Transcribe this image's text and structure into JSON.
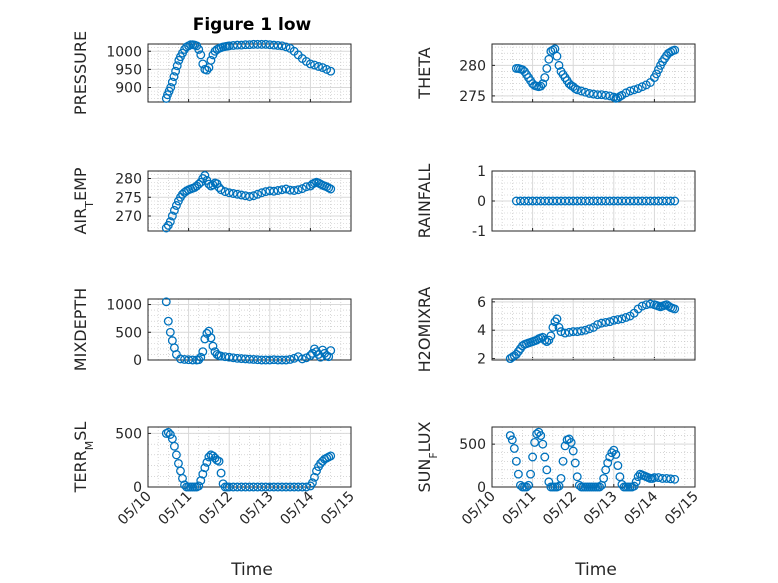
{
  "figure": {
    "title": "Figure 1 low",
    "xlabel": "Time",
    "xticks": [
      "05/10",
      "05/11",
      "05/12",
      "05/13",
      "05/14",
      "05/15"
    ],
    "marker_color": "#0072BD"
  },
  "chart_data": [
    {
      "type": "scatter",
      "ylabel": "PRESSURE",
      "yticks": [
        "900",
        "950",
        "1000"
      ],
      "ylim": [
        860,
        1020
      ],
      "xlim": [
        0,
        5
      ],
      "grid": true,
      "series": [
        {
          "x": [
            0.45,
            0.48,
            0.52,
            0.56,
            0.6,
            0.64,
            0.68,
            0.72,
            0.76,
            0.8,
            0.85,
            0.9,
            0.95,
            1.0,
            1.05,
            1.1,
            1.15,
            1.2,
            1.25,
            1.3,
            1.35,
            1.4,
            1.45,
            1.5,
            1.55,
            1.6,
            1.65,
            1.7,
            1.75,
            1.8,
            1.85,
            1.9,
            1.95,
            2.0,
            2.1,
            2.2,
            2.3,
            2.4,
            2.5,
            2.6,
            2.7,
            2.8,
            2.9,
            3.0,
            3.1,
            3.2,
            3.3,
            3.4,
            3.5,
            3.6,
            3.7,
            3.8,
            3.9,
            4.0,
            4.1,
            4.2,
            4.3,
            4.4,
            4.5
          ],
          "y": [
            870,
            880,
            890,
            900,
            915,
            930,
            945,
            960,
            975,
            985,
            995,
            1005,
            1012,
            1015,
            1018,
            1018,
            1017,
            1015,
            1005,
            990,
            965,
            950,
            948,
            955,
            975,
            990,
            1000,
            1005,
            1008,
            1010,
            1012,
            1013,
            1014,
            1015,
            1016,
            1017,
            1017,
            1018,
            1018,
            1019,
            1019,
            1019,
            1019,
            1018,
            1017,
            1016,
            1015,
            1012,
            1008,
            1000,
            990,
            980,
            972,
            965,
            962,
            958,
            955,
            950,
            945
          ]
        }
      ]
    },
    {
      "type": "scatter",
      "ylabel": "THETA",
      "yticks": [
        "275",
        "280"
      ],
      "ylim": [
        274,
        283.5
      ],
      "xlim": [
        0,
        5
      ],
      "grid": true,
      "series": [
        {
          "x": [
            0.6,
            0.65,
            0.7,
            0.75,
            0.8,
            0.85,
            0.9,
            0.95,
            1.0,
            1.05,
            1.1,
            1.15,
            1.2,
            1.25,
            1.3,
            1.35,
            1.4,
            1.45,
            1.5,
            1.55,
            1.6,
            1.65,
            1.7,
            1.75,
            1.8,
            1.85,
            1.9,
            1.95,
            2.0,
            2.05,
            2.1,
            2.2,
            2.3,
            2.4,
            2.5,
            2.6,
            2.7,
            2.8,
            2.9,
            3.0,
            3.05,
            3.1,
            3.15,
            3.2,
            3.3,
            3.4,
            3.5,
            3.6,
            3.7,
            3.8,
            3.9,
            4.0,
            4.05,
            4.1,
            4.15,
            4.2,
            4.25,
            4.3,
            4.35,
            4.4,
            4.45,
            4.5
          ],
          "y": [
            279.5,
            279.5,
            279.4,
            279.3,
            279,
            278.5,
            278,
            277.5,
            277,
            276.7,
            276.6,
            276.5,
            276.6,
            277,
            278,
            279.5,
            281,
            282.3,
            282.5,
            282.7,
            281.5,
            280,
            279,
            278.5,
            278,
            277.5,
            277,
            276.7,
            276.5,
            276.2,
            276,
            275.8,
            275.6,
            275.4,
            275.3,
            275.2,
            275.2,
            275.1,
            275,
            274.8,
            274.6,
            274.7,
            274.9,
            275.1,
            275.5,
            275.8,
            276,
            276.2,
            276.5,
            276.8,
            277.2,
            278,
            278.6,
            279.3,
            280,
            280.6,
            281.1,
            281.6,
            282,
            282.2,
            282.4,
            282.5
          ]
        }
      ]
    },
    {
      "type": "scatter",
      "ylabel": "AIR_TEMP",
      "yticks": [
        "270",
        "275",
        "280"
      ],
      "ylim": [
        266,
        282
      ],
      "xlim": [
        0,
        5
      ],
      "grid": true,
      "series": [
        {
          "x": [
            0.45,
            0.5,
            0.55,
            0.6,
            0.65,
            0.7,
            0.75,
            0.8,
            0.85,
            0.9,
            0.95,
            1.0,
            1.05,
            1.1,
            1.15,
            1.2,
            1.25,
            1.3,
            1.35,
            1.4,
            1.45,
            1.5,
            1.55,
            1.6,
            1.65,
            1.7,
            1.75,
            1.8,
            1.9,
            2.0,
            2.1,
            2.2,
            2.3,
            2.4,
            2.5,
            2.6,
            2.7,
            2.8,
            2.9,
            3.0,
            3.1,
            3.2,
            3.3,
            3.4,
            3.5,
            3.6,
            3.7,
            3.8,
            3.9,
            4.0,
            4.05,
            4.1,
            4.15,
            4.2,
            4.25,
            4.3,
            4.35,
            4.4,
            4.45,
            4.5
          ],
          "y": [
            266.8,
            267.5,
            268.5,
            270,
            271.5,
            272.8,
            274,
            275,
            275.8,
            276.3,
            276.7,
            277,
            277.2,
            277.4,
            277.6,
            278,
            278.5,
            279,
            280,
            280.8,
            279.5,
            278.5,
            278,
            278.3,
            278.8,
            278.6,
            277.6,
            277,
            276.5,
            276.2,
            276,
            275.8,
            275.6,
            275.4,
            275.2,
            275.4,
            275.8,
            276.2,
            276.5,
            276.7,
            276.6,
            276.8,
            277,
            277.2,
            276.9,
            276.8,
            277,
            277.3,
            277.8,
            278,
            278.5,
            278.8,
            279,
            278.8,
            278.5,
            278.2,
            278,
            277.8,
            277.5,
            277.2
          ]
        }
      ]
    },
    {
      "type": "scatter",
      "ylabel": "RAINFALL",
      "yticks": [
        "-1",
        "0",
        "1"
      ],
      "ylim": [
        -1,
        1
      ],
      "xlim": [
        0,
        5
      ],
      "grid": true,
      "series": [
        {
          "x": [
            0.6,
            0.7,
            0.8,
            0.9,
            1.0,
            1.1,
            1.2,
            1.3,
            1.4,
            1.5,
            1.6,
            1.7,
            1.8,
            1.9,
            2.0,
            2.1,
            2.2,
            2.3,
            2.4,
            2.5,
            2.6,
            2.7,
            2.8,
            2.9,
            3.0,
            3.1,
            3.2,
            3.3,
            3.4,
            3.5,
            3.6,
            3.7,
            3.8,
            3.9,
            4.0,
            4.1,
            4.2,
            4.3,
            4.4,
            4.5
          ],
          "y": [
            0,
            0,
            0,
            0,
            0,
            0,
            0,
            0,
            0,
            0,
            0,
            0,
            0,
            0,
            0,
            0,
            0,
            0,
            0,
            0,
            0,
            0,
            0,
            0,
            0,
            0,
            0,
            0,
            0,
            0,
            0,
            0,
            0,
            0,
            0,
            0,
            0,
            0,
            0,
            0
          ]
        }
      ]
    },
    {
      "type": "scatter",
      "ylabel": "MIXDEPTH",
      "yticks": [
        "0",
        "500",
        "1000"
      ],
      "ylim": [
        0,
        1100
      ],
      "xlim": [
        0,
        5
      ],
      "grid": true,
      "series": [
        {
          "x": [
            0.45,
            0.5,
            0.55,
            0.6,
            0.65,
            0.7,
            0.8,
            0.9,
            1.0,
            1.1,
            1.2,
            1.25,
            1.3,
            1.35,
            1.4,
            1.45,
            1.5,
            1.55,
            1.6,
            1.65,
            1.7,
            1.75,
            1.8,
            1.9,
            2.0,
            2.1,
            2.2,
            2.3,
            2.4,
            2.5,
            2.6,
            2.7,
            2.8,
            2.9,
            3.0,
            3.1,
            3.2,
            3.3,
            3.4,
            3.5,
            3.6,
            3.7,
            3.8,
            3.9,
            4.0,
            4.05,
            4.1,
            4.15,
            4.2,
            4.25,
            4.3,
            4.35,
            4.4,
            4.45,
            4.5
          ],
          "y": [
            1050,
            700,
            500,
            350,
            220,
            100,
            20,
            10,
            5,
            0,
            0,
            5,
            50,
            150,
            380,
            480,
            520,
            400,
            250,
            150,
            100,
            80,
            70,
            60,
            50,
            40,
            30,
            25,
            20,
            15,
            10,
            5,
            0,
            0,
            0,
            5,
            0,
            0,
            0,
            10,
            30,
            60,
            20,
            40,
            80,
            120,
            200,
            150,
            100,
            50,
            180,
            120,
            80,
            60,
            170
          ]
        }
      ]
    },
    {
      "type": "scatter",
      "ylabel": "H2OMIXRA",
      "yticks": [
        "2",
        "4",
        "6"
      ],
      "ylim": [
        1.9,
        6.2
      ],
      "xlim": [
        0,
        5
      ],
      "grid": true,
      "series": [
        {
          "x": [
            0.45,
            0.5,
            0.55,
            0.6,
            0.65,
            0.7,
            0.75,
            0.8,
            0.85,
            0.9,
            0.95,
            1.0,
            1.05,
            1.1,
            1.15,
            1.2,
            1.25,
            1.3,
            1.35,
            1.4,
            1.45,
            1.5,
            1.55,
            1.6,
            1.65,
            1.7,
            1.8,
            1.9,
            2.0,
            2.1,
            2.2,
            2.3,
            2.4,
            2.5,
            2.6,
            2.7,
            2.8,
            2.9,
            3.0,
            3.1,
            3.2,
            3.3,
            3.4,
            3.5,
            3.6,
            3.7,
            3.8,
            3.9,
            4.0,
            4.05,
            4.1,
            4.15,
            4.2,
            4.25,
            4.3,
            4.35,
            4.4,
            4.45,
            4.5
          ],
          "y": [
            2.0,
            2.1,
            2.2,
            2.3,
            2.5,
            2.7,
            2.9,
            3.0,
            3.05,
            3.1,
            3.15,
            3.2,
            3.25,
            3.3,
            3.4,
            3.45,
            3.5,
            3.3,
            3.2,
            3.3,
            3.6,
            4.2,
            4.6,
            4.8,
            4.2,
            3.9,
            3.8,
            3.85,
            3.9,
            3.9,
            3.95,
            4.0,
            4.1,
            4.2,
            4.4,
            4.5,
            4.55,
            4.6,
            4.7,
            4.75,
            4.8,
            4.9,
            5.0,
            5.2,
            5.5,
            5.7,
            5.8,
            5.85,
            5.8,
            5.75,
            5.7,
            5.65,
            5.7,
            5.75,
            5.8,
            5.7,
            5.6,
            5.55,
            5.5
          ]
        }
      ]
    },
    {
      "type": "scatter",
      "ylabel": "TERR_MSL",
      "yticks": [
        "0",
        "500"
      ],
      "ylim": [
        0,
        560
      ],
      "xlim": [
        0,
        5
      ],
      "grid": true,
      "series": [
        {
          "x": [
            0.45,
            0.5,
            0.55,
            0.6,
            0.65,
            0.7,
            0.75,
            0.8,
            0.85,
            0.9,
            0.95,
            1.0,
            1.05,
            1.1,
            1.15,
            1.2,
            1.25,
            1.3,
            1.35,
            1.4,
            1.45,
            1.5,
            1.55,
            1.6,
            1.65,
            1.7,
            1.75,
            1.8,
            1.85,
            1.9,
            1.95,
            2.0,
            2.1,
            2.2,
            2.3,
            2.4,
            2.5,
            2.6,
            2.7,
            2.8,
            2.9,
            3.0,
            3.1,
            3.2,
            3.3,
            3.4,
            3.5,
            3.6,
            3.7,
            3.8,
            3.9,
            4.0,
            4.05,
            4.1,
            4.15,
            4.2,
            4.25,
            4.3,
            4.35,
            4.4,
            4.45,
            4.5
          ],
          "y": [
            500,
            510,
            490,
            450,
            380,
            300,
            220,
            150,
            80,
            20,
            0,
            0,
            0,
            0,
            0,
            0,
            10,
            60,
            120,
            180,
            230,
            280,
            300,
            290,
            270,
            250,
            240,
            130,
            30,
            0,
            0,
            0,
            0,
            0,
            0,
            0,
            0,
            0,
            0,
            0,
            0,
            0,
            0,
            0,
            0,
            0,
            0,
            0,
            0,
            0,
            0,
            10,
            40,
            90,
            150,
            190,
            220,
            240,
            260,
            270,
            280,
            290
          ]
        }
      ]
    },
    {
      "type": "scatter",
      "ylabel": "SUN_FLUX",
      "yticks": [
        "0",
        "500"
      ],
      "ylim": [
        0,
        700
      ],
      "xlim": [
        0,
        5
      ],
      "grid": true,
      "series": [
        {
          "x": [
            0.45,
            0.5,
            0.55,
            0.6,
            0.65,
            0.7,
            0.75,
            0.8,
            0.85,
            0.9,
            0.95,
            1.0,
            1.05,
            1.1,
            1.15,
            1.2,
            1.25,
            1.3,
            1.35,
            1.4,
            1.45,
            1.5,
            1.55,
            1.6,
            1.65,
            1.7,
            1.75,
            1.8,
            1.85,
            1.9,
            1.95,
            2.0,
            2.05,
            2.1,
            2.15,
            2.2,
            2.25,
            2.3,
            2.35,
            2.4,
            2.45,
            2.5,
            2.55,
            2.6,
            2.65,
            2.7,
            2.75,
            2.8,
            2.85,
            2.9,
            2.95,
            3.0,
            3.05,
            3.1,
            3.15,
            3.2,
            3.25,
            3.3,
            3.35,
            3.4,
            3.45,
            3.5,
            3.55,
            3.6,
            3.65,
            3.7,
            3.75,
            3.8,
            3.85,
            3.9,
            3.95,
            4.0,
            4.1,
            4.2,
            4.3,
            4.4,
            4.5
          ],
          "y": [
            600,
            550,
            450,
            300,
            150,
            20,
            0,
            0,
            0,
            20,
            150,
            350,
            520,
            620,
            640,
            600,
            500,
            350,
            200,
            60,
            0,
            0,
            0,
            0,
            10,
            100,
            300,
            480,
            550,
            560,
            520,
            420,
            280,
            120,
            20,
            0,
            0,
            0,
            0,
            0,
            0,
            0,
            0,
            0,
            0,
            20,
            100,
            200,
            280,
            350,
            400,
            430,
            380,
            250,
            120,
            30,
            0,
            0,
            0,
            0,
            0,
            10,
            60,
            120,
            150,
            140,
            130,
            120,
            110,
            100,
            100,
            110,
            110,
            100,
            100,
            95,
            90
          ]
        }
      ]
    }
  ]
}
